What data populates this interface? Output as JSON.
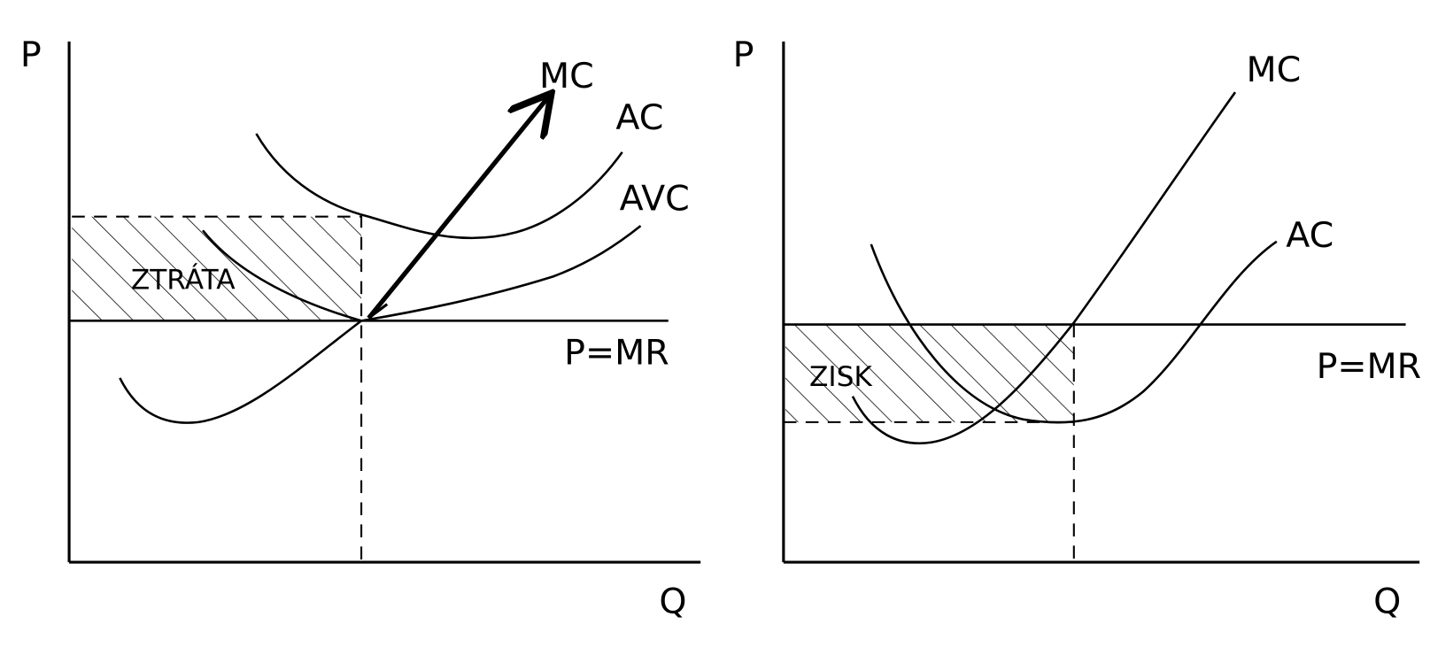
{
  "left": {
    "y_axis": "P",
    "x_axis": "Q",
    "price_line": "P=MR",
    "curves": [
      "MC",
      "AC",
      "AVC"
    ],
    "area": "ZTRÁTA"
  },
  "right": {
    "y_axis": "P",
    "x_axis": "Q",
    "price_line": "P=MR",
    "curves": [
      "MC",
      "AC"
    ],
    "area": "ZISK"
  }
}
